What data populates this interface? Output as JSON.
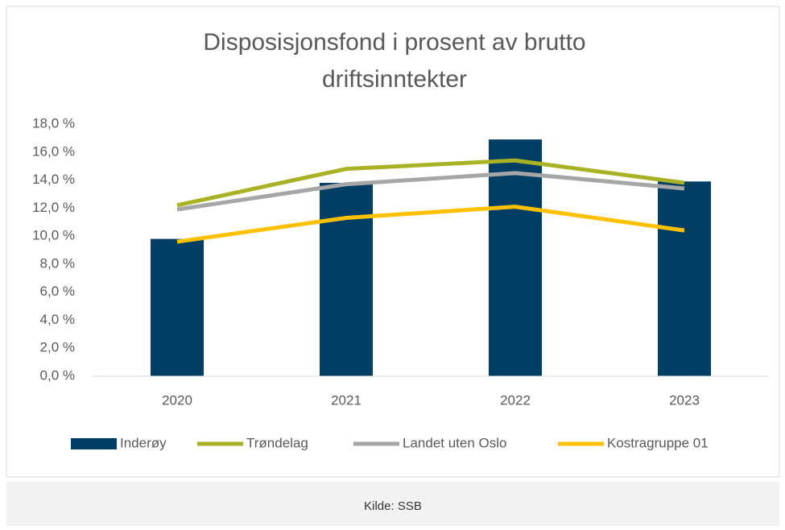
{
  "chart_data": {
    "type": "bar-line",
    "title": "Disposisjonsfond  i prosent av brutto driftsinntekter",
    "categories": [
      "2020",
      "2021",
      "2022",
      "2023"
    ],
    "series": [
      {
        "name": "Inderøy",
        "type": "bar",
        "color": "#003e66",
        "values": [
          9.8,
          13.8,
          16.9,
          13.9
        ]
      },
      {
        "name": "Trøndelag",
        "type": "line",
        "color": "#a9b224",
        "values": [
          12.2,
          14.8,
          15.4,
          13.8
        ]
      },
      {
        "name": "Landet uten Oslo",
        "type": "line",
        "color": "#a6a6a6",
        "values": [
          11.9,
          13.7,
          14.5,
          13.4
        ]
      },
      {
        "name": "Kostragruppe 01",
        "type": "line",
        "color": "#ffc000",
        "values": [
          9.6,
          11.3,
          12.1,
          10.4
        ]
      }
    ],
    "ylim": [
      0,
      18
    ],
    "yticks": [
      {
        "value": 0,
        "label": "0,0 %"
      },
      {
        "value": 2,
        "label": "2,0 %"
      },
      {
        "value": 4,
        "label": "4,0 %"
      },
      {
        "value": 6,
        "label": "6,0 %"
      },
      {
        "value": 8,
        "label": "8,0 %"
      },
      {
        "value": 10,
        "label": "10,0 %"
      },
      {
        "value": 12,
        "label": "12,0 %"
      },
      {
        "value": 14,
        "label": "14,0 %"
      },
      {
        "value": 16,
        "label": "16,0 %"
      },
      {
        "value": 18,
        "label": "18,0 %"
      }
    ],
    "grid": false,
    "legend": "bottom",
    "source": "Kilde: SSB"
  }
}
